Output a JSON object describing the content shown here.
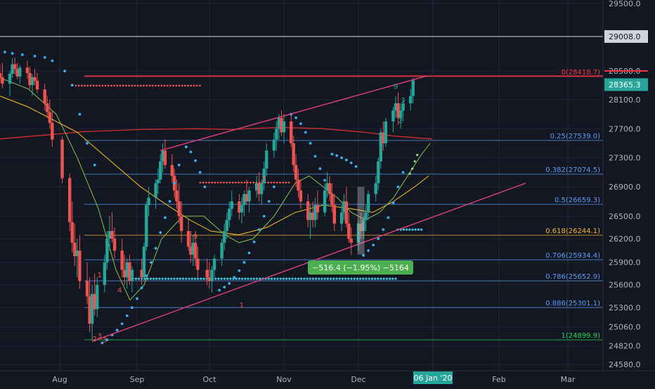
{
  "chart_data": {
    "type": "candlestick",
    "title": "",
    "y_axis": {
      "position": "right",
      "ticks": [
        "29500.0",
        "28500.0",
        "28100.0",
        "27700.0",
        "27300.0",
        "26900.0",
        "26500.0",
        "26200.0",
        "25900.0",
        "25600.0",
        "25300.0",
        "25060.0",
        "24820.0",
        "24580.0"
      ]
    },
    "x_axis": {
      "ticks": [
        "Aug",
        "Sep",
        "Oct",
        "Nov",
        "Dec",
        "Feb",
        "Mar"
      ],
      "highlight_label": "06 Jan '20"
    },
    "price_labels": {
      "line_29008": "29008.0",
      "last_price": "28365.3"
    },
    "fib_levels": [
      {
        "ratio": "0",
        "value": 28418.7,
        "label": "0(28418.7)",
        "color": "#f23645"
      },
      {
        "ratio": "0.25",
        "value": 27539.0,
        "label": "0.25(27539.0)",
        "color": "#5b9cf6"
      },
      {
        "ratio": "0.382",
        "value": 27074.5,
        "label": "0.382(27074.5)",
        "color": "#5b9cf6"
      },
      {
        "ratio": "0.5",
        "value": 26659.3,
        "label": "0.5(26659.3)",
        "color": "#5b9cf6"
      },
      {
        "ratio": "0.618",
        "value": 26244.1,
        "label": "0.618(26244.1)",
        "color": "#f5b335"
      },
      {
        "ratio": "0.706",
        "value": 25934.4,
        "label": "0.706(25934.4)",
        "color": "#5b9cf6"
      },
      {
        "ratio": "0.786",
        "value": 25652.9,
        "label": "0.786(25652.9)",
        "color": "#5b9cf6"
      },
      {
        "ratio": "0.886",
        "value": 25301.1,
        "label": "0.886(25301.1)",
        "color": "#5b9cf6"
      },
      {
        "ratio": "1",
        "value": 24899.9,
        "label": "1(24899.9)",
        "color": "#26d458"
      }
    ],
    "measure_label": "−516.4 (−1.95%) −5164",
    "sequential_counts": [
      {
        "text": "10",
        "color": "#ef5350"
      },
      {
        "text": "9",
        "color": "#ef5350"
      },
      {
        "text": "3",
        "color": "#ef5350"
      },
      {
        "text": "4",
        "color": "#ef5350"
      },
      {
        "text": "1",
        "color": "#ef5350"
      },
      {
        "text": "2",
        "color": "#ef5350"
      },
      {
        "text": "3",
        "color": "#ef5350"
      },
      {
        "text": "9",
        "color": "#ef5350"
      },
      {
        "text": "2",
        "color": "#ef5350"
      },
      {
        "text": "1",
        "color": "#ef5350"
      },
      {
        "text": "9",
        "color": "#26a69a"
      },
      {
        "text": "3",
        "color": "#26a69a"
      },
      {
        "text": "2",
        "color": "#26a69a"
      }
    ],
    "colors": {
      "background": "#131722",
      "up_candle": "#26a69a",
      "down_candle": "#ef5350",
      "trendline": "#e0407a",
      "ma_long": "#d32f2f",
      "ma_medium": "#e6b422",
      "ma_short": "#8bc34a",
      "sar_blue": "#3ab0f0",
      "support_cyan": "#3cc6e0"
    }
  }
}
